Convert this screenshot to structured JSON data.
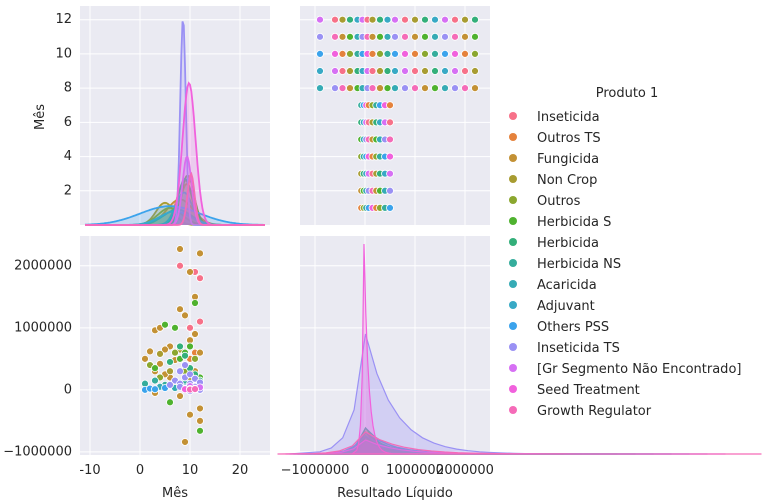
{
  "chart_data": {
    "type": "scatter",
    "kind": "pairplot",
    "variables": [
      "Mês",
      "Resultado Líquido"
    ],
    "hue": "Produto 1",
    "grid": true,
    "legend_placement": "right",
    "axes": {
      "mes_density_xlim": [
        -12,
        26
      ],
      "mes_ylim": [
        0,
        12.8
      ],
      "mes_yticks": [
        2,
        4,
        6,
        8,
        10,
        12
      ],
      "mes_xticks": [
        -10,
        0,
        10,
        20
      ],
      "resultado_xlim": [
        -1300000,
        2500000
      ],
      "resultado_xticks": [
        -1000000,
        0,
        1000000,
        2000000
      ],
      "resultado_xtick_labels": [
        "−1000000",
        "0",
        "1000000",
        "2000000"
      ],
      "resultado_ylim": [
        -1050000,
        2480000
      ],
      "resultado_yticks": [
        -1000000,
        0,
        1000000,
        2000000
      ],
      "resultado_ytick_labels": [
        "−1000000",
        "0",
        "1000000",
        "2000000"
      ]
    },
    "series": [
      {
        "name": "Inseticida",
        "color": "#f77189",
        "points": [
          [
            12,
            1800000
          ],
          [
            11,
            1900000
          ],
          [
            10,
            1000000
          ],
          [
            8,
            2000000
          ],
          [
            9,
            400000
          ],
          [
            12,
            1100000
          ]
        ],
        "kde_mes": {
          "mu": 9,
          "sd": 1.6,
          "peak": 2.6
        }
      },
      {
        "name": "Outros TS",
        "color": "#e5823c",
        "points": [
          [
            10,
            500000
          ],
          [
            9,
            300000
          ],
          [
            11,
            600000
          ]
        ],
        "kde_mes": {
          "mu": 9.3,
          "sd": 1.2,
          "peak": 2.4
        }
      },
      {
        "name": "Fungicida",
        "color": "#c39135",
        "points": [
          [
            8,
            2270000
          ],
          [
            12,
            2200000
          ],
          [
            10,
            1900000
          ],
          [
            2,
            620000
          ],
          [
            3,
            960000
          ],
          [
            4,
            1000000
          ],
          [
            11,
            1500000
          ],
          [
            9,
            -840000
          ],
          [
            12,
            -300000
          ],
          [
            8,
            1300000
          ],
          [
            6,
            700000
          ],
          [
            5,
            650000
          ],
          [
            7,
            480000
          ],
          [
            11,
            900000
          ],
          [
            10,
            800000
          ],
          [
            1,
            500000
          ],
          [
            2,
            400000
          ],
          [
            3,
            300000
          ],
          [
            9,
            1200000
          ],
          [
            12,
            -500000
          ],
          [
            4,
            420000
          ],
          [
            10,
            -400000
          ],
          [
            6,
            200000
          ],
          [
            11,
            300000
          ],
          [
            7,
            100000
          ],
          [
            12,
            600000
          ],
          [
            8,
            -100000
          ],
          [
            5,
            250000
          ],
          [
            3,
            -50000
          ]
        ],
        "kde_mes": {
          "mu": 8,
          "sd": 2.6,
          "peak": 1.5
        }
      },
      {
        "name": "Non Crop",
        "color": "#a89c31",
        "points": [
          [
            4,
            580000
          ],
          [
            6,
            300000
          ],
          [
            8,
            650000
          ],
          [
            10,
            150000
          ]
        ],
        "kde_mes": {
          "mu": 5,
          "sd": 1.8,
          "peak": 1.3
        }
      },
      {
        "name": "Outros",
        "color": "#8ba72f",
        "points": [
          [
            2,
            400000
          ],
          [
            4,
            200000
          ],
          [
            7,
            600000
          ],
          [
            9,
            300000
          ],
          [
            11,
            500000
          ]
        ],
        "kde_mes": {
          "mu": 6,
          "sd": 2.4,
          "peak": 1.0
        }
      },
      {
        "name": "Herbicida S",
        "color": "#4fb22f",
        "points": [
          [
            5,
            1050000
          ],
          [
            7,
            1000000
          ],
          [
            11,
            1400000
          ],
          [
            12,
            -660000
          ],
          [
            10,
            700000
          ],
          [
            9,
            600000
          ],
          [
            8,
            500000
          ],
          [
            3,
            350000
          ],
          [
            6,
            -200000
          ],
          [
            12,
            200000
          ]
        ],
        "kde_mes": {
          "mu": 9.5,
          "sd": 1.3,
          "peak": 2.9
        }
      },
      {
        "name": "Herbicida",
        "color": "#33af7a",
        "points": [
          [
            8,
            700000
          ],
          [
            9,
            550000
          ],
          [
            10,
            350000
          ],
          [
            11,
            250000
          ],
          [
            12,
            150000
          ],
          [
            6,
            450000
          ]
        ],
        "kde_mes": {
          "mu": 9,
          "sd": 1.4,
          "peak": 2.7
        }
      },
      {
        "name": "Herbicida NS",
        "color": "#35ad9c",
        "points": [
          [
            1,
            100000
          ],
          [
            3,
            150000
          ],
          [
            5,
            80000
          ],
          [
            9,
            120000
          ],
          [
            11,
            60000
          ]
        ],
        "kde_mes": {
          "mu": 7.5,
          "sd": 2.8,
          "peak": 0.9
        }
      },
      {
        "name": "Acaricida",
        "color": "#36abb5",
        "points": [
          [
            4,
            50000
          ],
          [
            7,
            30000
          ],
          [
            10,
            70000
          ]
        ],
        "kde_mes": {
          "mu": 8.8,
          "sd": 1.6,
          "peak": 1.9
        }
      },
      {
        "name": "Adjuvant",
        "color": "#38a9c5",
        "points": [
          [
            2,
            20000
          ],
          [
            9,
            40000
          ],
          [
            11,
            10000
          ]
        ],
        "kde_mes": {
          "mu": 7,
          "sd": 3,
          "peak": 0.8
        }
      },
      {
        "name": "Others PSS",
        "color": "#3ba3ec",
        "points": [
          [
            1,
            0
          ],
          [
            2,
            20000
          ],
          [
            3,
            10000
          ],
          [
            5,
            30000
          ]
        ],
        "kde_mes": {
          "mu": 6,
          "sd": 6,
          "peak": 1.1
        }
      },
      {
        "name": "Inseticida TS",
        "color": "#9a91f4",
        "points": [
          [
            8,
            300000
          ],
          [
            9,
            200000
          ],
          [
            10,
            100000
          ],
          [
            11,
            50000
          ],
          [
            12,
            0
          ],
          [
            7,
            150000
          ],
          [
            6,
            80000
          ],
          [
            9,
            400000
          ],
          [
            10,
            250000
          ],
          [
            8,
            100000
          ],
          [
            11,
            180000
          ],
          [
            12,
            120000
          ],
          [
            9,
            20000
          ],
          [
            10,
            -20000
          ],
          [
            8,
            50000
          ]
        ],
        "kde_mes": {
          "mu": 8.6,
          "sd": 0.55,
          "peak": 12.1
        }
      },
      {
        "name": "[Gr Segmento Não Encontrado]",
        "color": "#d670f4",
        "points": [
          [
            10,
            60000
          ],
          [
            11,
            20000
          ],
          [
            12,
            40000
          ]
        ],
        "kde_mes": {
          "mu": 9.4,
          "sd": 0.9,
          "peak": 4.0
        }
      },
      {
        "name": "Seed Treatment",
        "color": "#f161dd",
        "points": [
          [
            9,
            10000
          ],
          [
            10,
            15000
          ],
          [
            11,
            8000
          ]
        ],
        "kde_mes": {
          "mu": 9.8,
          "sd": 1.3,
          "peak": 8.3
        }
      },
      {
        "name": "Growth Regulator",
        "color": "#f56bb8",
        "points": [
          [
            10,
            5000
          ],
          [
            11,
            12000
          ]
        ],
        "kde_mes": {
          "mu": 10.2,
          "sd": 0.7,
          "peak": 3.0
        }
      }
    ],
    "top_right_points": {
      "x_values": [
        -900000,
        -600000,
        -450000,
        -300000,
        -150000,
        -50000,
        50000,
        150000,
        300000,
        450000,
        600000,
        800000,
        1000000,
        1200000,
        1400000,
        1600000,
        1800000,
        2000000,
        2200000
      ],
      "note_months": [
        1,
        2,
        3,
        4,
        5,
        6,
        7,
        8,
        9,
        10,
        11,
        12
      ]
    },
    "xlabels": [
      "Mês",
      "Resultado Líquido"
    ],
    "ylabels": [
      "Mês",
      ""
    ]
  }
}
